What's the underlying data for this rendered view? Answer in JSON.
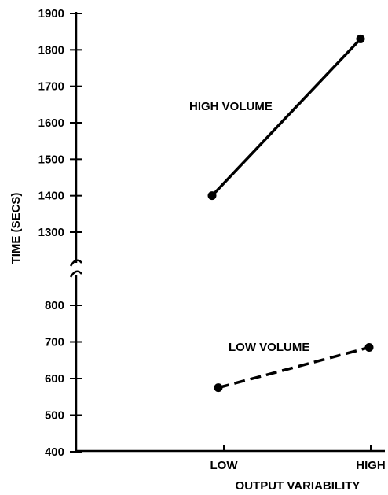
{
  "chart_data": {
    "type": "line",
    "title": "",
    "xlabel": "OUTPUT VARIABILITY",
    "ylabel": "TIME (SECS)",
    "categories": [
      "LOW",
      "HIGH"
    ],
    "y_ticks_upper": [
      1300,
      1400,
      1500,
      1600,
      1700,
      1800,
      1900
    ],
    "y_ticks_lower": [
      400,
      500,
      600,
      700,
      800
    ],
    "y_axis_break": true,
    "grid": false,
    "legend": "none",
    "series": [
      {
        "name": "HIGH VOLUME",
        "values": [
          1400,
          1830
        ],
        "style": "solid"
      },
      {
        "name": "LOW VOLUME",
        "values": [
          575,
          685
        ],
        "style": "dashed"
      }
    ]
  }
}
